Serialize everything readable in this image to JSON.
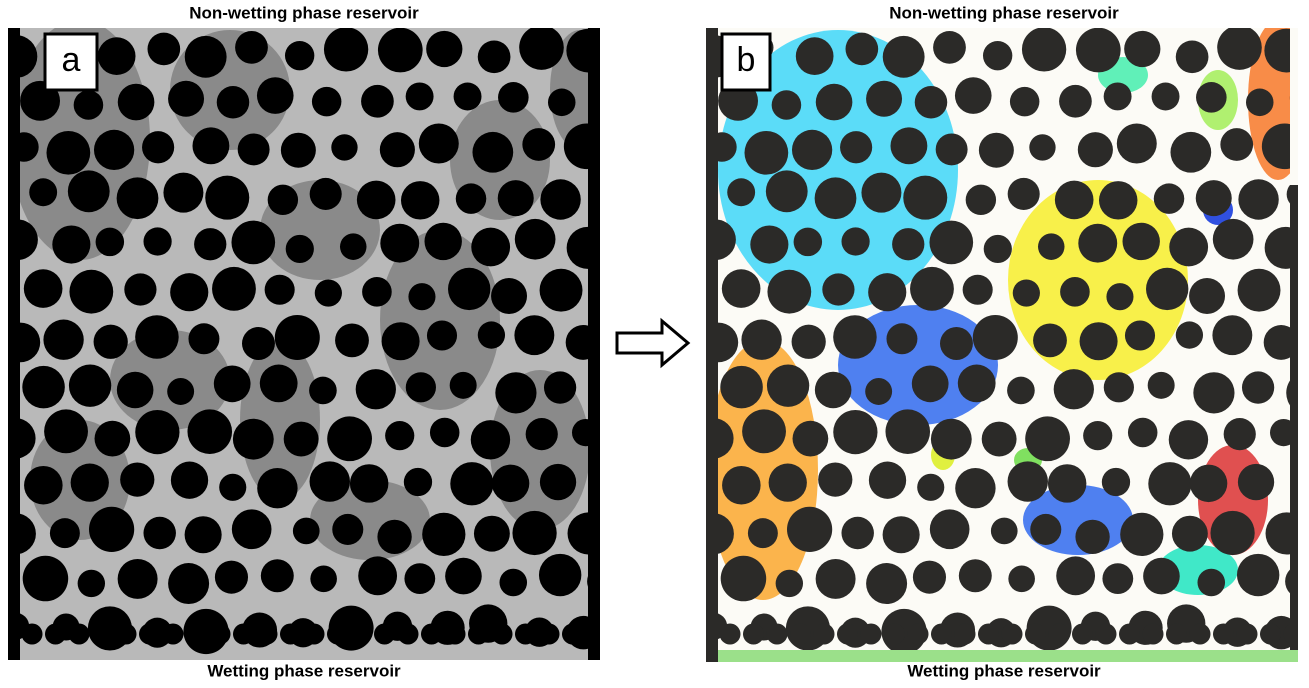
{
  "panel_a": {
    "title": "Non-wetting phase reservoir",
    "label": "a",
    "caption": "Wetting phase reservoir"
  },
  "panel_b": {
    "title": "Non-wetting phase reservoir",
    "label": "b",
    "caption": "Wetting phase reservoir"
  }
}
